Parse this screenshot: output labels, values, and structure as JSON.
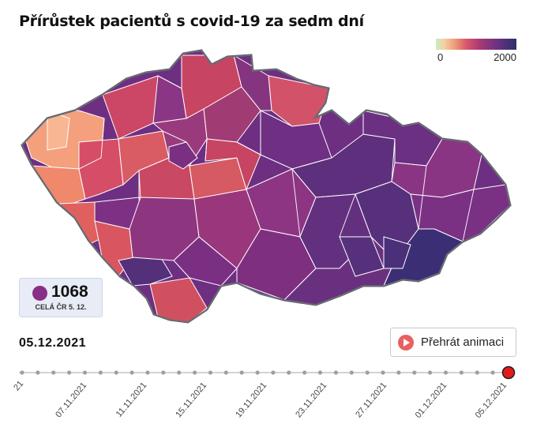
{
  "title": "Přírůstek pacientů s covid-19 za sedm dní",
  "legend": {
    "min_label": "0",
    "max_label": "2000",
    "colors": [
      "#c4efc4",
      "#f4d1a3",
      "#f0a27c",
      "#d9566a",
      "#a43a75",
      "#6e3281",
      "#2c2f6c"
    ]
  },
  "summary": {
    "value": "1068",
    "label": "CELÁ ČR 5. 12.",
    "color": "#8a2f86"
  },
  "current_date": "05.12.2021",
  "play_button": {
    "label": "Přehrát animaci",
    "icon": "play-icon"
  },
  "timeline": {
    "first_label_partial": "21",
    "labels": [
      "07.11.2021",
      "11.11.2021",
      "15.11.2021",
      "19.11.2021",
      "23.11.2021",
      "27.11.2021",
      "01.12.2021",
      "05.12.2021"
    ],
    "selected": "05.12.2021",
    "marker_color": "#e21b1b"
  },
  "map": {
    "region_colors": {
      "karlovarsko": "#f4a07d",
      "chebsko": "#f0a27c",
      "west_pink": "#e06a63",
      "central_red": "#d34e66",
      "central_magenta": "#a03378",
      "east_purple": "#6e2f82",
      "southeast_indigo": "#3d2d73",
      "border": "#ffffff",
      "outline": "#5b5f66"
    }
  }
}
